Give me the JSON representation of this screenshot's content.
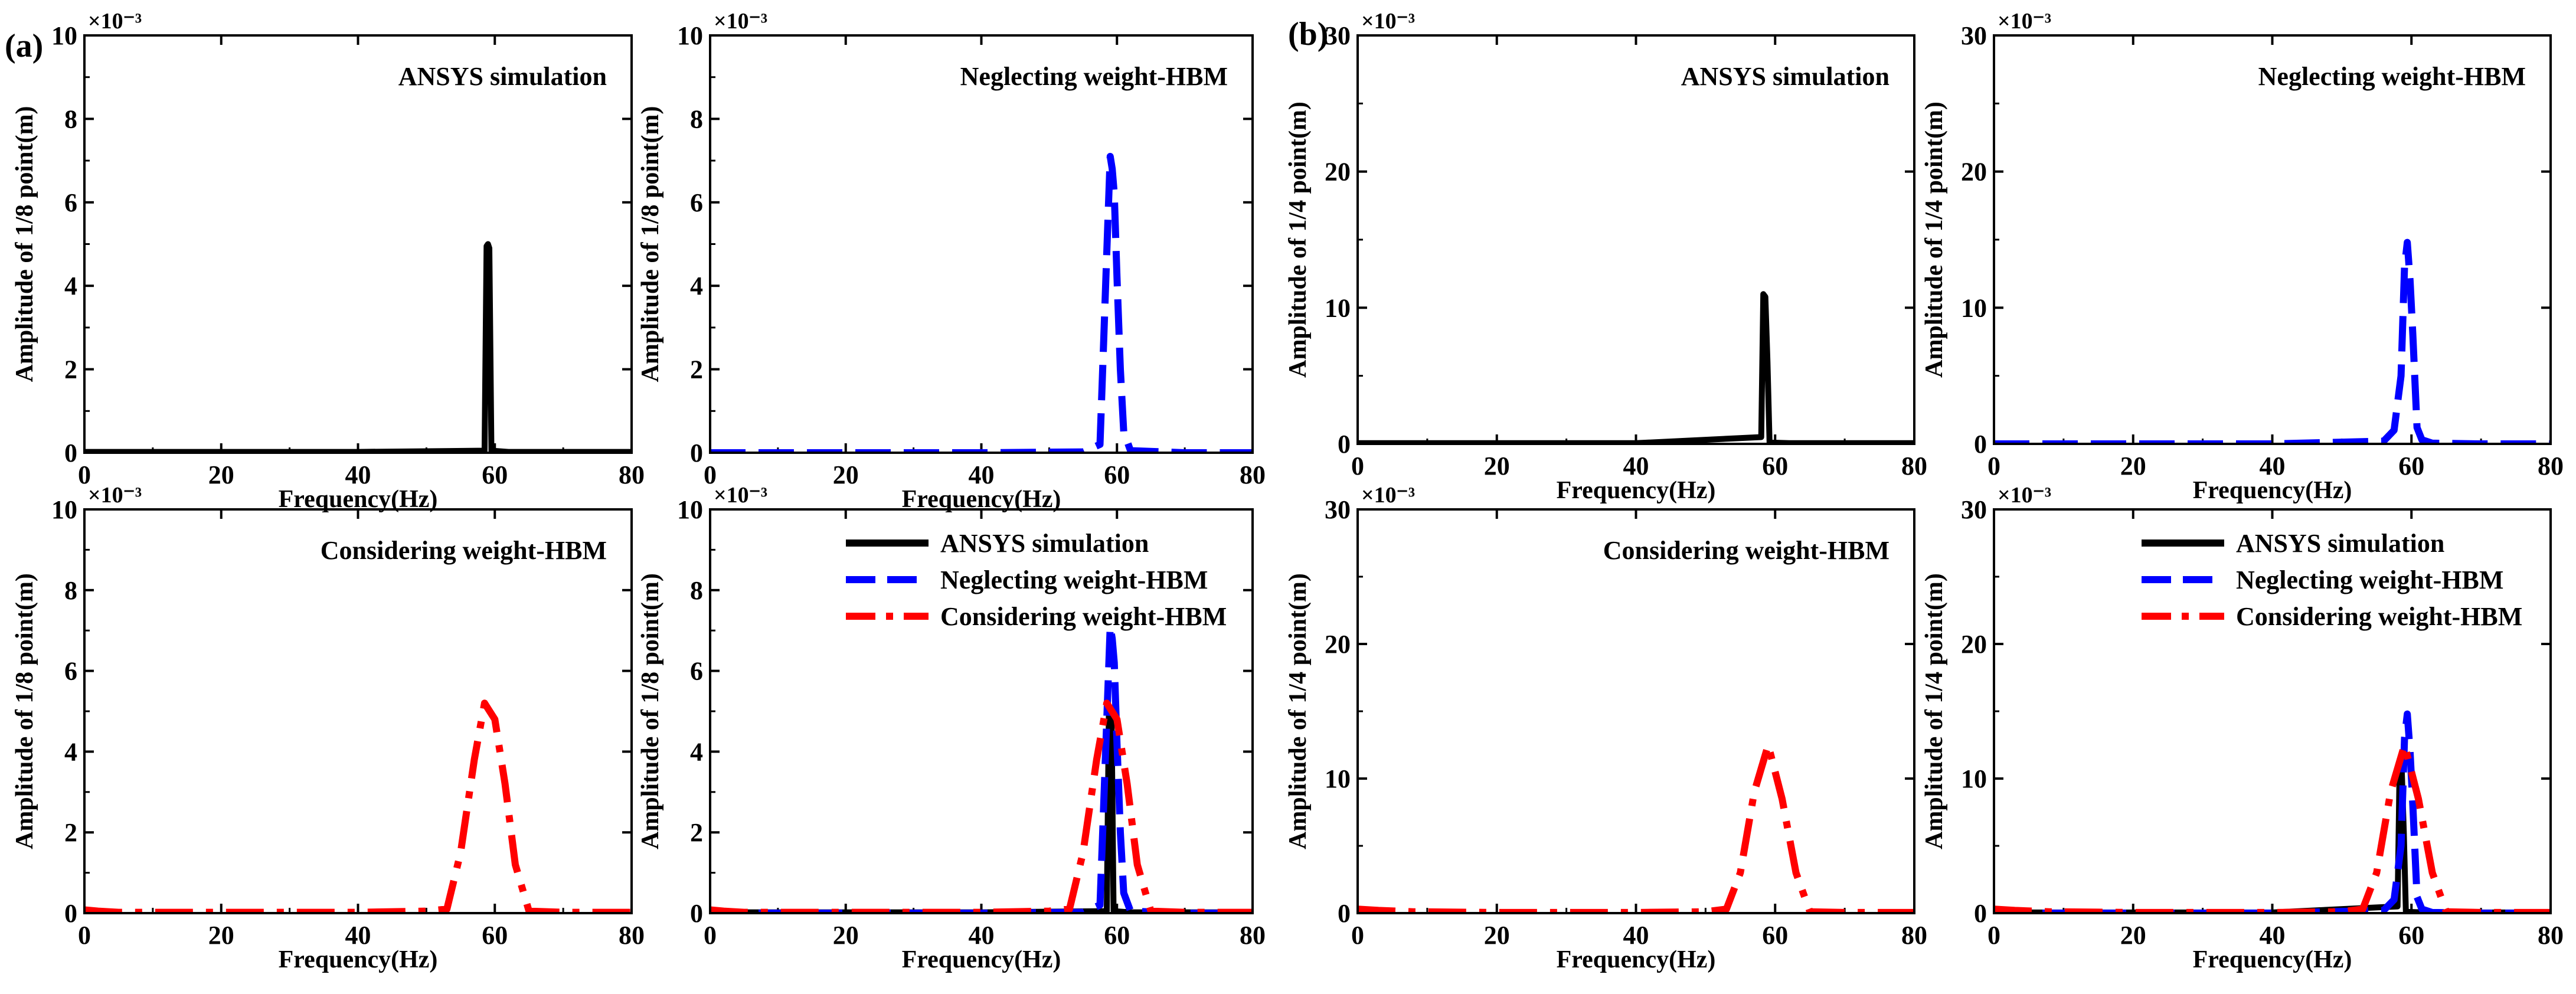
{
  "figure": {
    "panel_labels": [
      "(a)",
      "(b)"
    ],
    "colors": {
      "ansys": "#000000",
      "neglect": "#0000ff",
      "consider": "#ff0000"
    },
    "legend": {
      "ansys": "ANSYS simulation",
      "neglect": "Neglecting weight-HBM",
      "consider": "Considering weight-HBM"
    }
  },
  "chart_data": [
    {
      "id": "a-ansys",
      "group": "a",
      "type": "line",
      "title": "ANSYS simulation",
      "xlabel": "Frequency(Hz)",
      "ylabel": "Amplitude of 1/8 point(m)",
      "exponent": "×10⁻³",
      "xlim": [
        0,
        80
      ],
      "ylim": [
        0,
        10
      ],
      "xticks": [
        "0",
        "20",
        "40",
        "60",
        "80"
      ],
      "yticks": [
        "0",
        "2",
        "4",
        "6",
        "8",
        "10"
      ],
      "series": [
        {
          "name": "ANSYS simulation",
          "key": "ansys",
          "x": [
            0,
            20,
            40,
            58.5,
            58.8,
            59.0,
            59.2,
            59.5,
            62,
            80
          ],
          "y": [
            0.02,
            0.02,
            0.02,
            0.05,
            4.95,
            5.0,
            4.9,
            0.05,
            0.02,
            0.02
          ]
        }
      ]
    },
    {
      "id": "a-neglect",
      "group": "a",
      "type": "line",
      "title": "Neglecting weight-HBM",
      "xlabel": "Frequency(Hz)",
      "ylabel": "Amplitude of 1/8 point(m)",
      "exponent": "×10⁻³",
      "xlim": [
        0,
        80
      ],
      "ylim": [
        0,
        10
      ],
      "xticks": [
        "0",
        "20",
        "40",
        "60",
        "80"
      ],
      "yticks": [
        "0",
        "2",
        "4",
        "6",
        "8",
        "10"
      ],
      "series": [
        {
          "name": "Neglecting weight-HBM",
          "key": "neglect",
          "x": [
            0,
            20,
            40,
            55,
            57.5,
            58,
            58.5,
            59,
            59.3,
            59.6,
            60,
            60.5,
            61,
            62,
            70,
            80
          ],
          "y": [
            0,
            0,
            0,
            0.02,
            0.2,
            2.5,
            4.8,
            7.1,
            6.8,
            6.2,
            4.2,
            2.0,
            0.5,
            0.05,
            0,
            0
          ]
        }
      ]
    },
    {
      "id": "a-consider",
      "group": "a",
      "type": "line",
      "title": "Considering weight-HBM",
      "xlabel": "Frequency(Hz)",
      "ylabel": "Amplitude of 1/8 point(m)",
      "exponent": "×10⁻³",
      "xlim": [
        0,
        80
      ],
      "ylim": [
        0,
        10
      ],
      "xticks": [
        "0",
        "20",
        "40",
        "60",
        "80"
      ],
      "yticks": [
        "0",
        "2",
        "4",
        "6",
        "8",
        "10"
      ],
      "series": [
        {
          "name": "Considering weight-HBM",
          "key": "consider",
          "x": [
            0,
            2,
            5,
            20,
            40,
            50,
            53,
            55,
            57,
            58.5,
            60,
            61.5,
            63,
            65,
            70,
            80
          ],
          "y": [
            0.08,
            0.05,
            0.02,
            0.02,
            0.02,
            0.05,
            0.1,
            1.5,
            3.8,
            5.2,
            4.8,
            3.2,
            1.2,
            0.05,
            0.02,
            0.02
          ]
        }
      ]
    },
    {
      "id": "a-combined",
      "group": "a",
      "type": "line",
      "title": "",
      "xlabel": "Frequency(Hz)",
      "ylabel": "Amplitude of 1/8 point(m)",
      "exponent": "×10⁻³",
      "xlim": [
        0,
        80
      ],
      "ylim": [
        0,
        10
      ],
      "xticks": [
        "0",
        "20",
        "40",
        "60",
        "80"
      ],
      "yticks": [
        "0",
        "2",
        "4",
        "6",
        "8",
        "10"
      ],
      "legend": true,
      "series": [
        {
          "name": "ANSYS simulation",
          "key": "ansys",
          "x": [
            0,
            20,
            40,
            58.5,
            58.8,
            59.0,
            59.2,
            59.5,
            62,
            80
          ],
          "y": [
            0.02,
            0.02,
            0.02,
            0.05,
            4.95,
            5.0,
            4.9,
            0.05,
            0.02,
            0.02
          ]
        },
        {
          "name": "Neglecting weight-HBM",
          "key": "neglect",
          "x": [
            0,
            20,
            40,
            55,
            57.5,
            58,
            58.5,
            59,
            59.3,
            59.6,
            60,
            60.5,
            61,
            62,
            70,
            80
          ],
          "y": [
            0,
            0,
            0,
            0.02,
            0.2,
            2.5,
            4.8,
            7.1,
            6.8,
            6.2,
            4.2,
            2.0,
            0.5,
            0.05,
            0,
            0
          ]
        },
        {
          "name": "Considering weight-HBM",
          "key": "consider",
          "x": [
            0,
            2,
            5,
            20,
            40,
            50,
            53,
            55,
            57,
            58.5,
            60,
            61.5,
            63,
            65,
            70,
            80
          ],
          "y": [
            0.08,
            0.05,
            0.02,
            0.02,
            0.02,
            0.05,
            0.1,
            1.5,
            3.8,
            5.2,
            4.8,
            3.2,
            1.2,
            0.05,
            0.02,
            0.02
          ]
        }
      ]
    },
    {
      "id": "b-ansys",
      "group": "b",
      "type": "line",
      "title": "ANSYS simulation",
      "xlabel": "Frequency(Hz)",
      "ylabel": "Amplitude of 1/4 point(m)",
      "exponent": "×10⁻³",
      "xlim": [
        0,
        80
      ],
      "ylim": [
        0,
        30
      ],
      "xticks": [
        "0",
        "20",
        "40",
        "60",
        "80"
      ],
      "yticks": [
        "0",
        "10",
        "20",
        "30"
      ],
      "series": [
        {
          "name": "ANSYS simulation",
          "key": "ansys",
          "x": [
            0,
            20,
            40,
            58.0,
            58.3,
            58.6,
            58.9,
            59.2,
            62,
            80
          ],
          "y": [
            0.05,
            0.05,
            0.05,
            0.5,
            11.0,
            10.8,
            6.0,
            0.1,
            0.05,
            0.05
          ]
        }
      ]
    },
    {
      "id": "b-neglect",
      "group": "b",
      "type": "line",
      "title": "Neglecting weight-HBM",
      "xlabel": "Frequency(Hz)",
      "ylabel": "Amplitude of 1/4 point(m)",
      "exponent": "×10⁻³",
      "xlim": [
        0,
        80
      ],
      "ylim": [
        0,
        30
      ],
      "xticks": [
        "0",
        "20",
        "40",
        "60",
        "80"
      ],
      "yticks": [
        "0",
        "10",
        "20",
        "30"
      ],
      "series": [
        {
          "name": "Neglecting weight-HBM",
          "key": "neglect",
          "x": [
            0,
            20,
            40,
            56,
            57.5,
            58.5,
            59,
            59.4,
            59.8,
            60.2,
            60.8,
            61.5,
            63,
            70,
            80
          ],
          "y": [
            0,
            0,
            0,
            0.2,
            1.0,
            5.0,
            13.0,
            14.8,
            12.0,
            8.0,
            1.2,
            0.3,
            0.05,
            0,
            0
          ]
        }
      ]
    },
    {
      "id": "b-consider",
      "group": "b",
      "type": "line",
      "title": "Considering weight-HBM",
      "xlabel": "Frequency(Hz)",
      "ylabel": "Amplitude of 1/4 point(m)",
      "exponent": "×10⁻³",
      "xlim": [
        0,
        80
      ],
      "ylim": [
        0,
        30
      ],
      "xticks": [
        "0",
        "20",
        "40",
        "60",
        "80"
      ],
      "yticks": [
        "0",
        "10",
        "20",
        "30"
      ],
      "series": [
        {
          "name": "Considering weight-HBM",
          "key": "consider",
          "x": [
            0,
            3,
            8,
            20,
            40,
            50,
            53,
            55,
            57,
            59,
            61,
            63,
            65,
            70,
            80
          ],
          "y": [
            0.3,
            0.2,
            0.1,
            0.05,
            0.05,
            0.1,
            0.3,
            3.0,
            9.0,
            12.5,
            8.5,
            3.0,
            0.1,
            0.05,
            0.05
          ]
        }
      ]
    },
    {
      "id": "b-combined",
      "group": "b",
      "type": "line",
      "title": "",
      "xlabel": "Frequency(Hz)",
      "ylabel": "Amplitude of 1/4 point(m)",
      "exponent": "×10⁻³",
      "xlim": [
        0,
        80
      ],
      "ylim": [
        0,
        30
      ],
      "xticks": [
        "0",
        "20",
        "40",
        "60",
        "80"
      ],
      "yticks": [
        "0",
        "10",
        "20",
        "30"
      ],
      "legend": true,
      "series": [
        {
          "name": "ANSYS simulation",
          "key": "ansys",
          "x": [
            0,
            20,
            40,
            58.0,
            58.3,
            58.6,
            58.9,
            59.2,
            62,
            80
          ],
          "y": [
            0.05,
            0.05,
            0.05,
            0.5,
            11.0,
            10.8,
            6.0,
            0.1,
            0.05,
            0.05
          ]
        },
        {
          "name": "Neglecting weight-HBM",
          "key": "neglect",
          "x": [
            0,
            20,
            40,
            56,
            57.5,
            58.5,
            59,
            59.4,
            59.8,
            60.2,
            60.8,
            61.5,
            63,
            70,
            80
          ],
          "y": [
            0,
            0,
            0,
            0.2,
            1.0,
            5.0,
            13.0,
            14.8,
            12.0,
            8.0,
            1.2,
            0.3,
            0.05,
            0,
            0
          ]
        },
        {
          "name": "Considering weight-HBM",
          "key": "consider",
          "x": [
            0,
            3,
            8,
            20,
            40,
            50,
            53,
            55,
            57,
            59,
            61,
            63,
            65,
            70,
            80
          ],
          "y": [
            0.3,
            0.2,
            0.1,
            0.05,
            0.05,
            0.1,
            0.3,
            3.0,
            9.0,
            12.5,
            8.5,
            3.0,
            0.1,
            0.05,
            0.05
          ]
        }
      ]
    }
  ]
}
